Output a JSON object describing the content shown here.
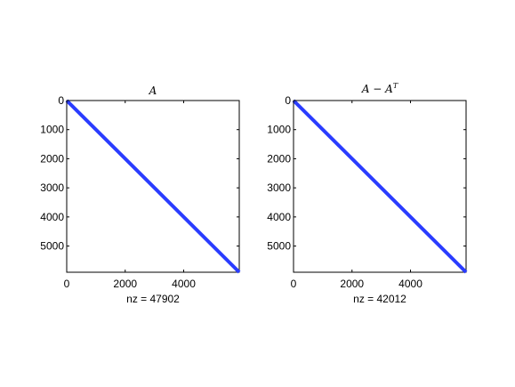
{
  "chart_data": [
    {
      "type": "scatter",
      "subtype": "sparsity-pattern",
      "title": "A",
      "xlabel": "nz = 47902",
      "ylabel": "",
      "xlim": [
        0,
        5900
      ],
      "ylim": [
        0,
        5900
      ],
      "y_reversed": true,
      "xticks": [
        0,
        2000,
        4000
      ],
      "yticks": [
        0,
        1000,
        2000,
        3000,
        4000,
        5000
      ],
      "nz": 47902,
      "pattern": "diagonal band",
      "series": [
        {
          "x": [
            0,
            5900
          ],
          "y": [
            0,
            5900
          ]
        }
      ],
      "color": "#2a3cff"
    },
    {
      "type": "scatter",
      "subtype": "sparsity-pattern",
      "title_base": "A − A",
      "title_sup": "T",
      "xlabel": "nz = 42012",
      "ylabel": "",
      "xlim": [
        0,
        5900
      ],
      "ylim": [
        0,
        5900
      ],
      "y_reversed": true,
      "xticks": [
        0,
        2000,
        4000
      ],
      "yticks": [
        0,
        1000,
        2000,
        3000,
        4000,
        5000
      ],
      "nz": 42012,
      "pattern": "diagonal band",
      "series": [
        {
          "x": [
            0,
            5900
          ],
          "y": [
            0,
            5900
          ]
        }
      ],
      "color": "#2a3cff"
    }
  ]
}
